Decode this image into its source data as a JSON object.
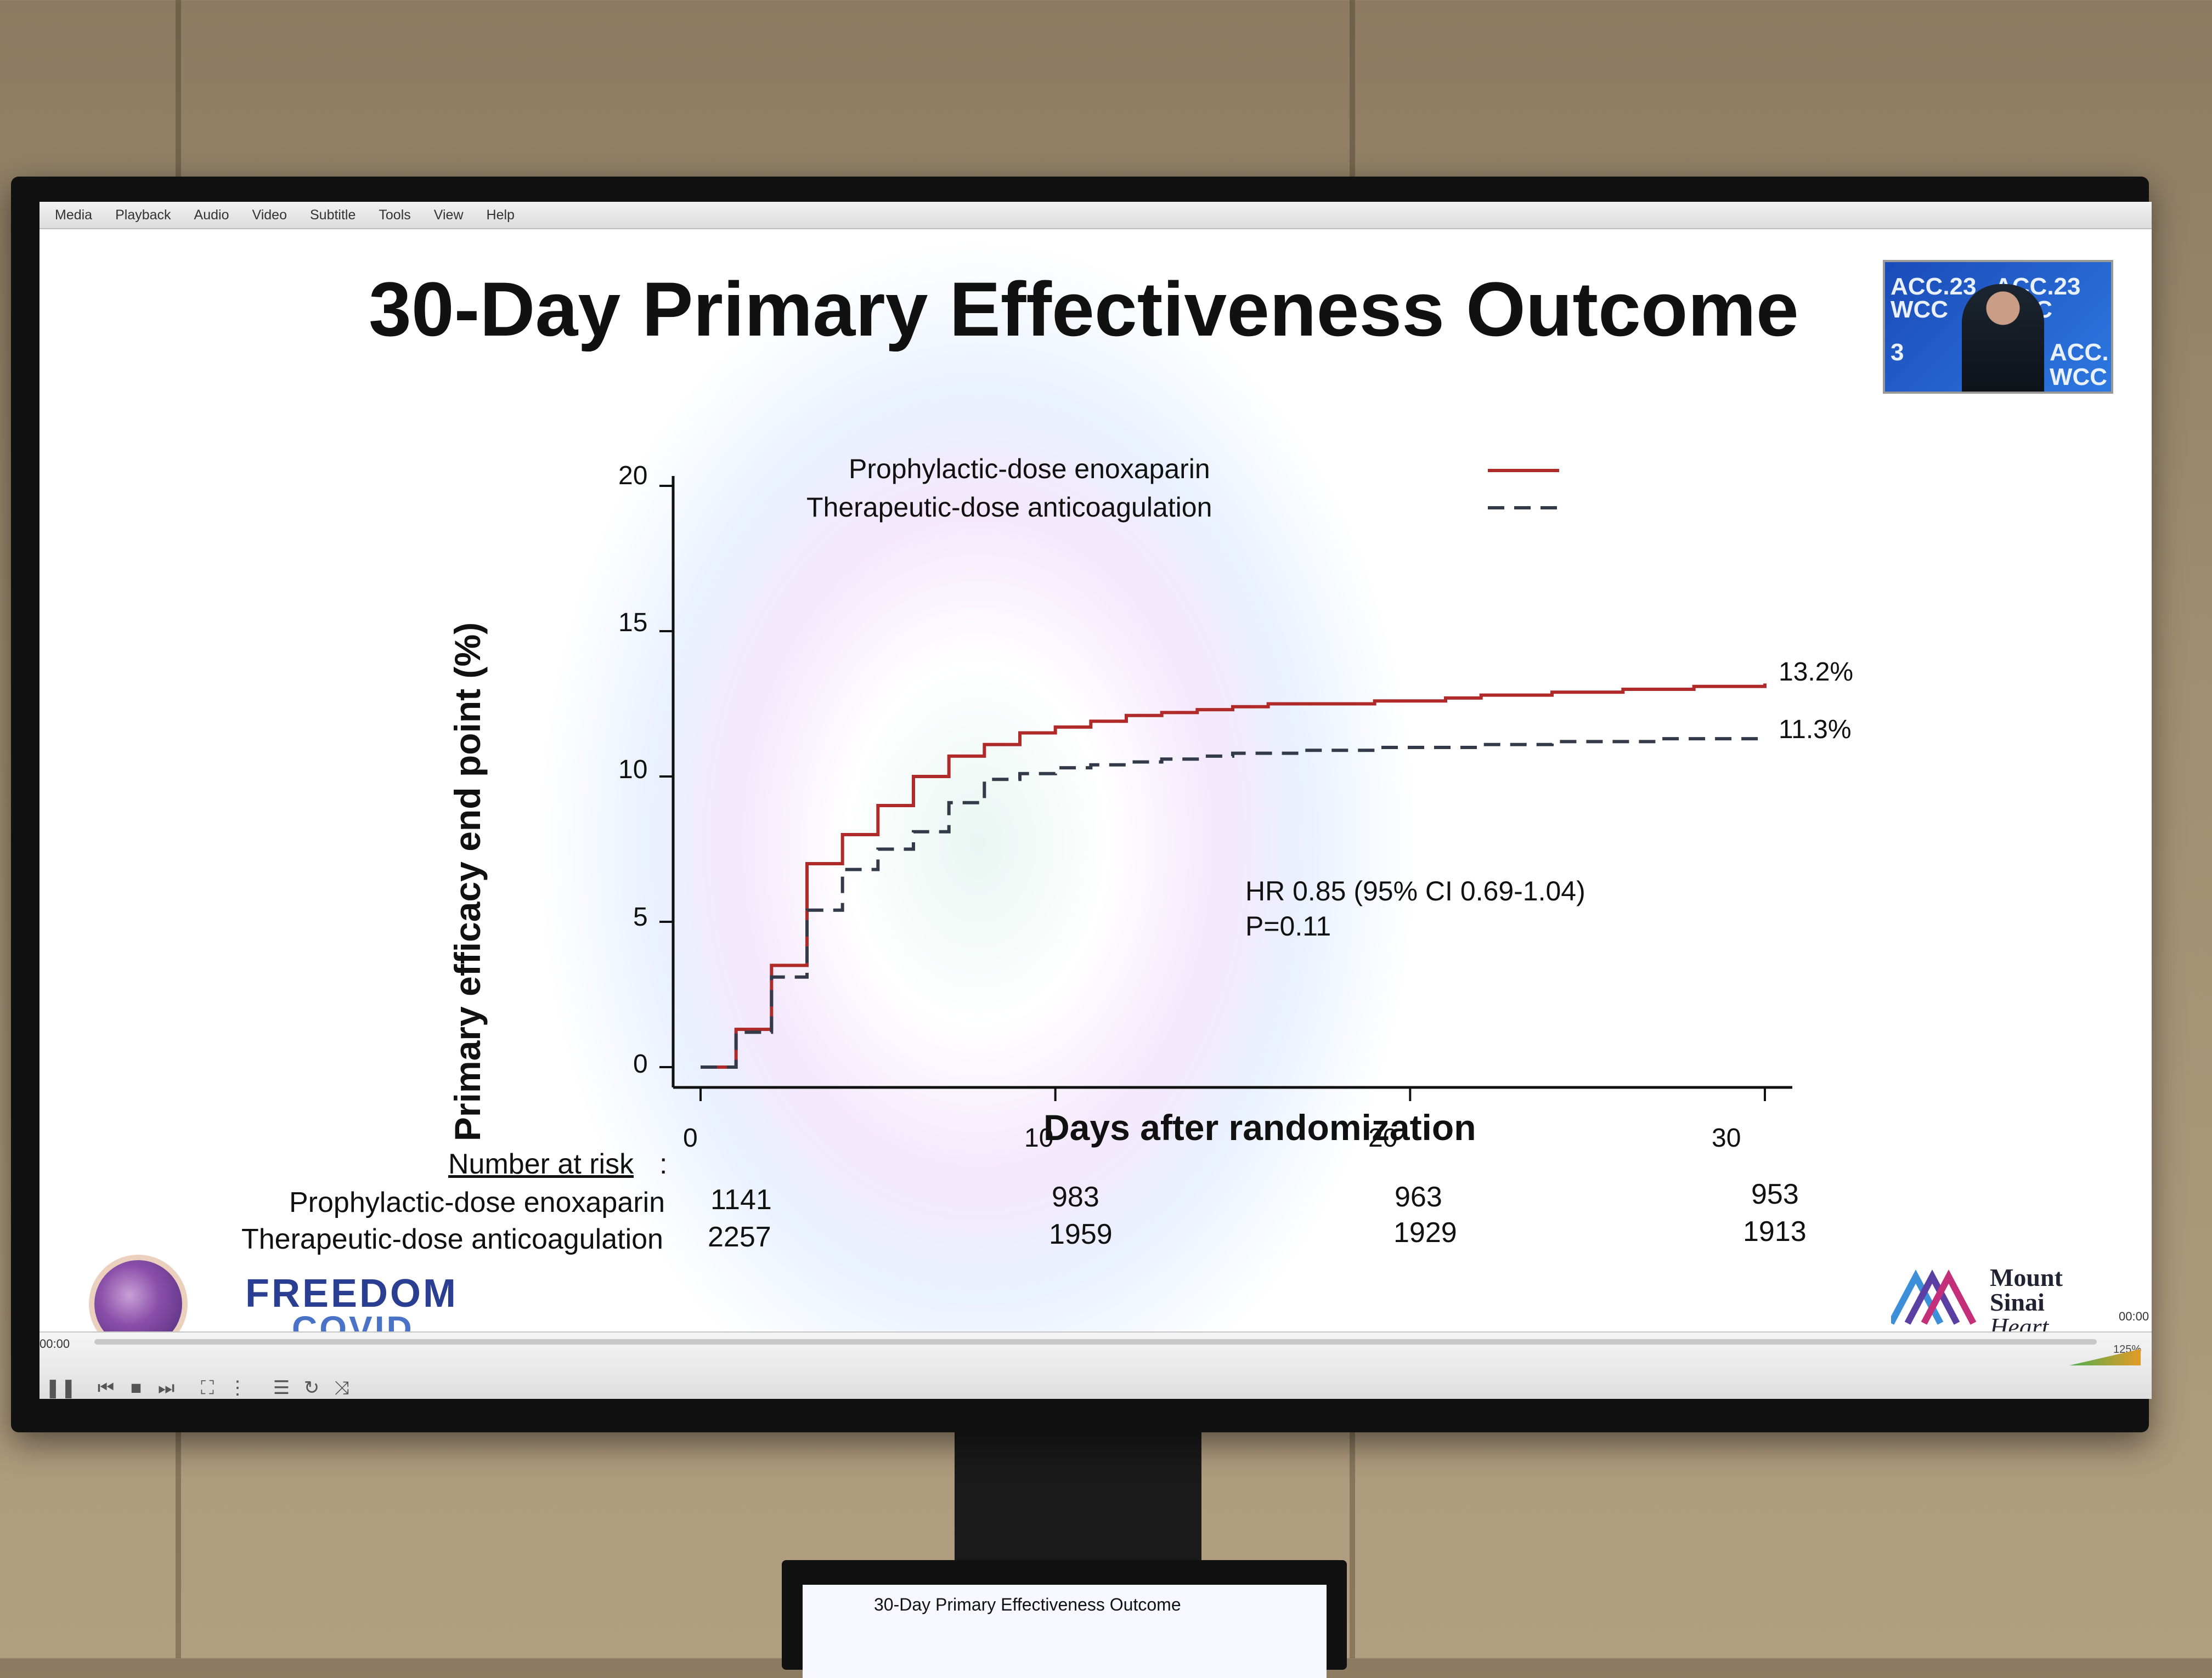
{
  "player": {
    "menu": [
      "Media",
      "Playback",
      "Audio",
      "Video",
      "Subtitle",
      "Tools",
      "View",
      "Help"
    ],
    "time_elapsed": "00:00",
    "time_total": "00:00",
    "volume": "125%",
    "controls": [
      "pause",
      "previous",
      "stop",
      "next",
      "fullscreen",
      "extended-settings",
      "playlist",
      "loop",
      "shuffle"
    ]
  },
  "slide": {
    "title": "30-Day Primary Effectiveness Outcome",
    "inset_text": [
      "ACC.23",
      "WCC",
      "ACC.23",
      "WCC",
      "3",
      "ACC.",
      "WCC"
    ],
    "hr_text": "HR 0.85 (95% CI 0.69-1.04)",
    "p_text": "P=0.11",
    "risk_header": "Number at risk",
    "risk_colon": ":",
    "risk_rows": [
      {
        "label": "Prophylactic-dose enoxaparin",
        "values": [
          "1141",
          "983",
          "963",
          "953"
        ]
      },
      {
        "label": "Therapeutic-dose anticoagulation",
        "values": [
          "2257",
          "1959",
          "1929",
          "1913"
        ]
      }
    ],
    "logo_left": {
      "line1": "FREEDOM",
      "line2": "COVID"
    },
    "logo_right": {
      "line1": "Mount",
      "line2": "Sinai",
      "line3": "Heart"
    }
  },
  "chart_data": {
    "type": "line",
    "title": "30-Day Primary Effectiveness Outcome",
    "xlabel": "Days after randomization",
    "ylabel": "Primary efficacy end point (%)",
    "xlim": [
      0,
      30
    ],
    "ylim": [
      0,
      20
    ],
    "xticks": [
      "0",
      "10",
      "20",
      "30"
    ],
    "yticks": [
      "0",
      "5",
      "10",
      "15",
      "20"
    ],
    "legend_position": "top-center",
    "series": [
      {
        "name": "Prophylactic-dose enoxaparin",
        "color": "#b02a2a",
        "style": "solid",
        "end_label": "13.2%",
        "x": [
          0,
          1,
          2,
          3,
          4,
          5,
          6,
          7,
          8,
          9,
          10,
          11,
          12,
          13,
          14,
          15,
          16,
          17,
          18,
          19,
          20,
          21,
          22,
          23,
          24,
          25,
          26,
          27,
          28,
          29,
          30
        ],
        "y": [
          0,
          1.3,
          3.5,
          7.0,
          8.0,
          9.0,
          10.0,
          10.7,
          11.1,
          11.5,
          11.7,
          11.9,
          12.1,
          12.2,
          12.3,
          12.4,
          12.5,
          12.5,
          12.5,
          12.6,
          12.6,
          12.7,
          12.8,
          12.8,
          12.9,
          12.9,
          13.0,
          13.0,
          13.1,
          13.1,
          13.2
        ]
      },
      {
        "name": "Therapeutic-dose anticoagulation",
        "color": "#333b4a",
        "style": "dashed",
        "end_label": "11.3%",
        "x": [
          0,
          1,
          2,
          3,
          4,
          5,
          6,
          7,
          8,
          9,
          10,
          11,
          12,
          13,
          14,
          15,
          16,
          17,
          18,
          19,
          20,
          21,
          22,
          23,
          24,
          25,
          26,
          27,
          28,
          29,
          30
        ],
        "y": [
          0,
          1.2,
          3.1,
          5.4,
          6.8,
          7.5,
          8.1,
          9.1,
          9.9,
          10.1,
          10.3,
          10.4,
          10.5,
          10.6,
          10.7,
          10.8,
          10.8,
          10.9,
          10.9,
          11.0,
          11.0,
          11.0,
          11.1,
          11.1,
          11.2,
          11.2,
          11.2,
          11.3,
          11.3,
          11.3,
          11.3
        ]
      }
    ]
  }
}
